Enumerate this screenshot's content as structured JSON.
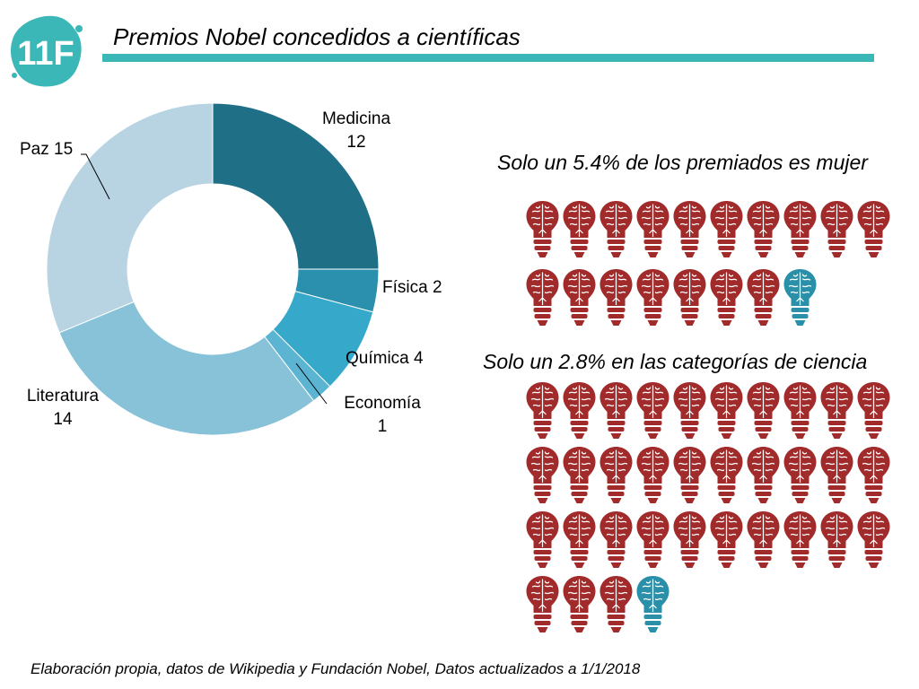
{
  "logo": {
    "text": "11F",
    "color": "#3bb7b7"
  },
  "header": {
    "title": "Premios Nobel concedidos a científicas"
  },
  "chart_data": {
    "type": "pie",
    "variant": "donut",
    "categories": [
      "Medicina",
      "Física",
      "Química",
      "Economía",
      "Literatura",
      "Paz"
    ],
    "values": [
      12,
      2,
      4,
      1,
      14,
      15
    ],
    "colors": [
      "#1f6f87",
      "#2b8fae",
      "#36a9cb",
      "#5bb5d2",
      "#88c2d8",
      "#b8d4e3"
    ],
    "labels": [
      {
        "line1": "Medicina",
        "line2": "12"
      },
      {
        "line1": "Física 2",
        "line2": ""
      },
      {
        "line1": "Química 4",
        "line2": ""
      },
      {
        "line1": "Economía",
        "line2": "1"
      },
      {
        "line1": "Literatura",
        "line2": "14"
      },
      {
        "line1": "Paz 15",
        "line2": ""
      }
    ]
  },
  "stats": [
    {
      "text": "Solo un 5.4% de los premiados es mujer",
      "rows": [
        10,
        8
      ],
      "highlight_count": 1,
      "icon": "brain-bulb-icon",
      "color_men": "#a12a2a",
      "color_women": "#2a8fa8"
    },
    {
      "text": "Solo un 2.8% en las categorías de ciencia",
      "rows": [
        10,
        10,
        10,
        4
      ],
      "highlight_count": 1,
      "icon": "brain-bulb-icon",
      "color_men": "#a12a2a",
      "color_women": "#2a8fa8"
    }
  ],
  "footer": {
    "text": "Elaboración propia, datos de Wikipedia y Fundación Nobel, Datos actualizados a 1/1/2018"
  }
}
